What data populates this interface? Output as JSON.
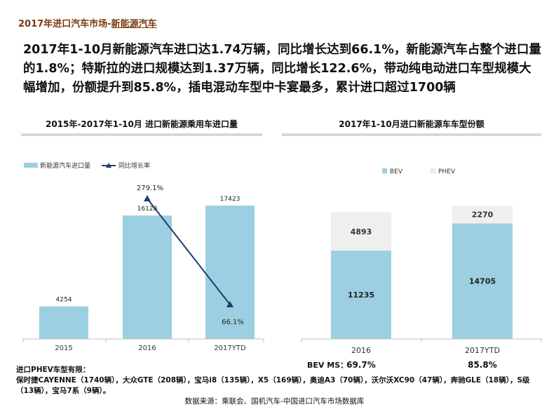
{
  "page": {
    "title_prefix": "2017年进口汽车市场-",
    "title_emphasis": "新能源汽车",
    "headline": "2017年1-10月新能源汽车进口达1.74万辆，同比增长达到66.1%，新能源汽车占整个进口量的1.8%；特斯拉的进口规模达到1.37万辆，同比增长122.6%，带动纯电动进口车型规模大幅增加，份额提升到85.8%，插电混动车型中卡宴最多，累计进口超过1700辆",
    "notes_title": "进口PHEV车型有限：",
    "notes_body": "保时捷CAYENNE（1740辆），大众GTE（208辆），宝马i8（135辆），X5（169辆），奥迪A3（70辆），沃尔沃XC90（47辆），奔驰GLE（18辆），S级（13辆），宝马7系（9辆）。",
    "source": "数据来源：乘联会、国机汽车-中国进口汽车市场数据库"
  },
  "colors": {
    "bar": "#9ccfe1",
    "line": "#1f3e6e",
    "phev": "#efefef"
  },
  "chart_data": [
    {
      "type": "bar",
      "title": "2015年-2017年1-10月 进口新能源乘用车进口量",
      "categories": [
        "2015",
        "2016",
        "2017YTD"
      ],
      "series": [
        {
          "name": "新能源汽车进口量",
          "type": "bar",
          "values": [
            4254,
            16128,
            17423
          ],
          "labels": [
            "4254",
            "16128",
            "17423"
          ]
        },
        {
          "name": "同比增长率",
          "type": "line",
          "values": [
            null,
            279.1,
            66.1
          ],
          "labels": [
            "",
            "279.1%",
            "66.1%"
          ]
        }
      ],
      "legend": "top-left",
      "grid": false
    },
    {
      "type": "bar",
      "stacked": true,
      "title": "2017年1-10月进口新能源车车型份额",
      "categories": [
        "2016",
        "2017YTD"
      ],
      "series": [
        {
          "name": "BEV",
          "values": [
            11235,
            14705
          ]
        },
        {
          "name": "PHEV",
          "values": [
            4893,
            2270
          ]
        }
      ],
      "footer_label": "BEV MS：",
      "footer_values": [
        "69.7%",
        "85.8%"
      ],
      "legend": "top-left",
      "grid": false
    }
  ]
}
